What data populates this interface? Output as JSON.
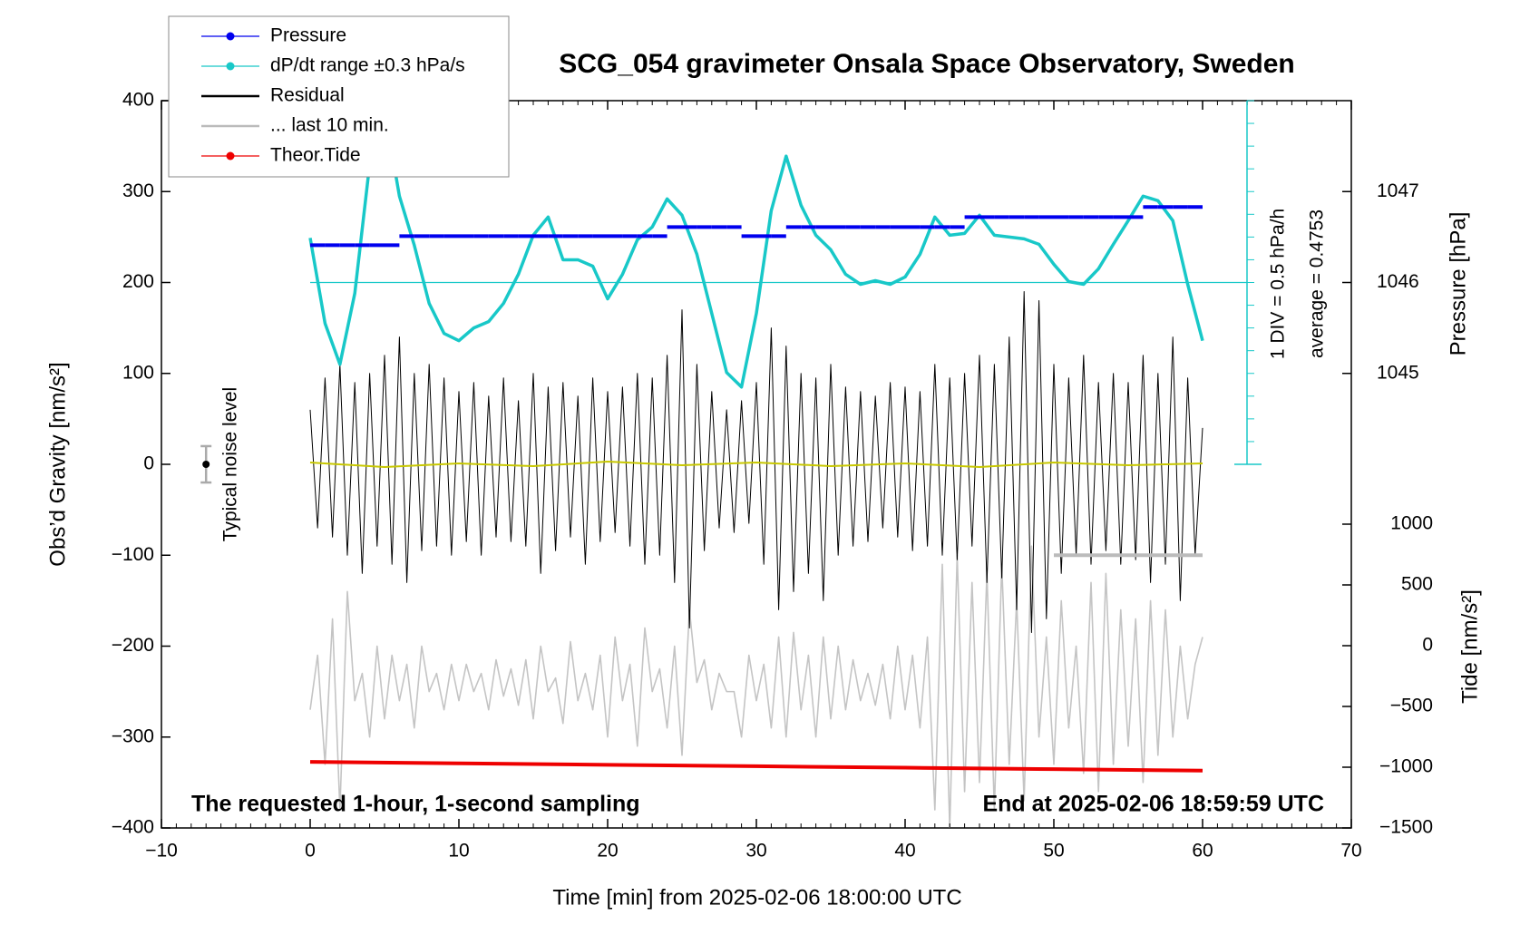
{
  "chart_data": {
    "type": "line",
    "title": "SCG_054 gravimeter Onsala Space Observatory, Sweden",
    "xlabel": "Time [min] from 2025-02-06 18:00:00 UTC",
    "ylabel": "Obs’d Gravity [nm/s²]",
    "y2label": "Pressure [hPa]",
    "y3label": "Tide [nm/s²]",
    "footnote_left": "The requested 1-hour, 1-second sampling",
    "footnote_right": "End at 2025-02-06 18:59:59 UTC",
    "scale_label": "1 DIV = 0.5 hPa/h",
    "average_label": "average = 0.4753",
    "average_line": 200,
    "legend_loc": "upper left",
    "noise": {
      "label": "Typical noise level",
      "x": -7,
      "value": 0,
      "error": 20
    },
    "xlim": [
      -10,
      70
    ],
    "xticks": [
      {
        "value": -10,
        "label": "−10"
      },
      0,
      10,
      20,
      30,
      40,
      50,
      60,
      70
    ],
    "ylim": [
      -400,
      400
    ],
    "yticks": [
      {
        "value": -400,
        "label": "−400"
      },
      {
        "value": -300,
        "label": "−300"
      },
      {
        "value": -200,
        "label": "−200"
      },
      {
        "value": -100,
        "label": "−100"
      },
      0,
      100,
      200,
      300,
      400
    ],
    "y2lim": [
      1040,
      1048
    ],
    "y2ticks": [
      1045,
      1046,
      1047
    ],
    "y3lim": [
      -1500,
      1000
    ],
    "y3ticks": [
      {
        "value": -1500,
        "label": "−1500"
      },
      {
        "value": -1000,
        "label": "−1000"
      },
      {
        "value": -500,
        "label": "−500"
      },
      0,
      500,
      1000
    ],
    "x": [
      0,
      0.5,
      1,
      1.5,
      2,
      2.5,
      3,
      3.5,
      4,
      4.5,
      5,
      5.5,
      6,
      6.5,
      7,
      7.5,
      8,
      8.5,
      9,
      9.5,
      10,
      10.5,
      11,
      11.5,
      12,
      12.5,
      13,
      13.5,
      14,
      14.5,
      15,
      15.5,
      16,
      16.5,
      17,
      17.5,
      18,
      18.5,
      19,
      19.5,
      20,
      20.5,
      21,
      21.5,
      22,
      22.5,
      23,
      23.5,
      24,
      24.5,
      25,
      25.5,
      26,
      26.5,
      27,
      27.5,
      28,
      28.5,
      29,
      29.5,
      30,
      30.5,
      31,
      31.5,
      32,
      32.5,
      33,
      33.5,
      34,
      34.5,
      35,
      35.5,
      36,
      36.5,
      37,
      37.5,
      38,
      38.5,
      39,
      39.5,
      40,
      40.5,
      41,
      41.5,
      42,
      42.5,
      43,
      43.5,
      44,
      44.5,
      45,
      45.5,
      46,
      46.5,
      47,
      47.5,
      48,
      48.5,
      49,
      49.5,
      50,
      50.5,
      51,
      51.5,
      52,
      52.5,
      53,
      53.5,
      54,
      54.5,
      55,
      55.5,
      56,
      56.5,
      57,
      57.5,
      58,
      58.5,
      59,
      59.5,
      60
    ],
    "series": [
      {
        "name": "Pressure",
        "color": "#0000ee",
        "axis": "y2",
        "marker": true,
        "steps": true,
        "x": [
          0,
          1,
          2,
          3,
          4,
          5,
          6,
          7,
          8,
          9,
          10,
          11,
          12,
          13,
          14,
          15,
          16,
          17,
          18,
          19,
          20,
          21,
          22,
          23,
          24,
          25,
          26,
          27,
          28,
          29,
          30,
          31,
          32,
          33,
          34,
          35,
          36,
          37,
          38,
          39,
          40,
          41,
          42,
          43,
          44,
          45,
          46,
          47,
          48,
          49,
          50,
          51,
          52,
          53,
          54,
          55,
          56,
          57,
          58,
          59
        ],
        "values": [
          1046.41,
          1046.41,
          1046.41,
          1046.41,
          1046.41,
          1046.41,
          1046.51,
          1046.51,
          1046.51,
          1046.51,
          1046.51,
          1046.51,
          1046.51,
          1046.51,
          1046.51,
          1046.51,
          1046.51,
          1046.51,
          1046.51,
          1046.51,
          1046.51,
          1046.51,
          1046.51,
          1046.51,
          1046.61,
          1046.61,
          1046.61,
          1046.61,
          1046.61,
          1046.51,
          1046.51,
          1046.51,
          1046.61,
          1046.61,
          1046.61,
          1046.61,
          1046.61,
          1046.61,
          1046.61,
          1046.61,
          1046.61,
          1046.61,
          1046.61,
          1046.61,
          1046.72,
          1046.72,
          1046.72,
          1046.72,
          1046.72,
          1046.72,
          1046.72,
          1046.72,
          1046.72,
          1046.72,
          1046.72,
          1046.72,
          1046.83,
          1046.83,
          1046.83,
          1046.83
        ]
      },
      {
        "name": "dP/dt range ±0.3 hPa/s",
        "color": "#18c8c8",
        "marker": true,
        "x": [
          0,
          1,
          2,
          3,
          4,
          5,
          6,
          7,
          8,
          9,
          10,
          11,
          12,
          13,
          14,
          15,
          16,
          17,
          18,
          19,
          20,
          21,
          22,
          23,
          24,
          25,
          26,
          27,
          28,
          29,
          30,
          31,
          32,
          33,
          34,
          35,
          36,
          37,
          38,
          39,
          40,
          41,
          42,
          43,
          44,
          45,
          46,
          47,
          48,
          49,
          50,
          51,
          52,
          53,
          54,
          55,
          56,
          57,
          58,
          59,
          60
        ],
        "values": [
          249,
          155,
          110,
          188,
          330,
          390,
          295,
          241,
          177,
          144,
          136,
          150,
          157,
          177,
          209,
          252,
          272,
          225,
          225,
          218,
          182,
          209,
          247,
          261,
          292,
          274,
          231,
          166,
          101,
          85,
          166,
          279,
          339,
          285,
          252,
          236,
          209,
          198,
          202,
          198,
          206,
          231,
          272,
          252,
          254,
          274,
          252,
          250,
          248,
          242,
          220,
          201,
          198,
          215,
          242,
          268,
          295,
          290,
          268,
          198,
          136
        ]
      },
      {
        "name": "Residual",
        "color": "#000000",
        "values": [
          60,
          -70,
          95,
          -80,
          110,
          -100,
          90,
          -120,
          100,
          -90,
          120,
          -110,
          140,
          -130,
          100,
          -95,
          110,
          -90,
          95,
          -100,
          80,
          -85,
          90,
          -100,
          75,
          -80,
          95,
          -85,
          70,
          -90,
          100,
          -120,
          85,
          -95,
          90,
          -80,
          75,
          -110,
          95,
          -85,
          80,
          -75,
          85,
          -90,
          100,
          -110,
          95,
          -100,
          120,
          -130,
          170,
          -180,
          110,
          -95,
          80,
          -70,
          60,
          -75,
          70,
          -65,
          90,
          -110,
          150,
          -160,
          130,
          -140,
          100,
          -120,
          95,
          -150,
          110,
          -100,
          85,
          -90,
          80,
          -85,
          75,
          -70,
          90,
          -80,
          85,
          -95,
          80,
          -90,
          110,
          -100,
          95,
          -105,
          100,
          -90,
          120,
          -130,
          110,
          -125,
          140,
          -160,
          190,
          -185,
          180,
          -170,
          110,
          -120,
          95,
          -100,
          120,
          -110,
          90,
          -95,
          100,
          -110,
          90,
          -105,
          120,
          -130,
          100,
          -110,
          140,
          -150,
          95,
          -100,
          40
        ]
      },
      {
        "name": "... last 10 min.",
        "color": "#bbbbbb",
        "x": [
          50,
          60
        ],
        "values": [
          -100,
          -100
        ]
      },
      {
        "name": "Theor.Tide",
        "color": "#ee0000",
        "axis": "y3",
        "marker": true,
        "x": [
          0,
          10,
          20,
          30,
          40,
          50,
          60
        ],
        "values": [
          -956,
          -968,
          -980,
          -992,
          -1004,
          -1016,
          -1028
        ]
      },
      {
        "color": "#c4c4c4",
        "values": [
          -270,
          -210,
          -330,
          -170,
          -380,
          -140,
          -260,
          -230,
          -300,
          -200,
          -280,
          -210,
          -260,
          -220,
          -290,
          -200,
          -250,
          -230,
          -270,
          -220,
          -260,
          -220,
          -250,
          -230,
          -270,
          -215,
          -255,
          -225,
          -265,
          -215,
          -280,
          -200,
          -250,
          -235,
          -285,
          -195,
          -260,
          -230,
          -270,
          -210,
          -300,
          -190,
          -260,
          -220,
          -310,
          -180,
          -250,
          -225,
          -290,
          -200,
          -320,
          -160,
          -240,
          -215,
          -270,
          -230,
          -250,
          -250,
          -300,
          -210,
          -260,
          -220,
          -290,
          -190,
          -300,
          -185,
          -270,
          -210,
          -300,
          -190,
          -280,
          -200,
          -270,
          -215,
          -260,
          -230,
          -265,
          -220,
          -280,
          -200,
          -270,
          -210,
          -290,
          -190,
          -380,
          -110,
          -400,
          -100,
          -360,
          -130,
          -350,
          -120,
          -380,
          -110,
          -330,
          -150,
          -370,
          -90,
          -300,
          -190,
          -330,
          -150,
          -290,
          -200,
          -340,
          -130,
          -360,
          -120,
          -330,
          -160,
          -310,
          -170,
          -350,
          -150,
          -320,
          -160,
          -300,
          -200,
          -280,
          -220,
          -190
        ]
      },
      {
        "color": "#c8c800",
        "x": [
          0,
          5,
          10,
          15,
          20,
          25,
          30,
          35,
          40,
          45,
          50,
          55,
          60
        ],
        "values": [
          2,
          -3,
          1,
          -2,
          3,
          -1,
          2,
          -2,
          1,
          -3,
          2,
          -1,
          1
        ]
      }
    ]
  }
}
